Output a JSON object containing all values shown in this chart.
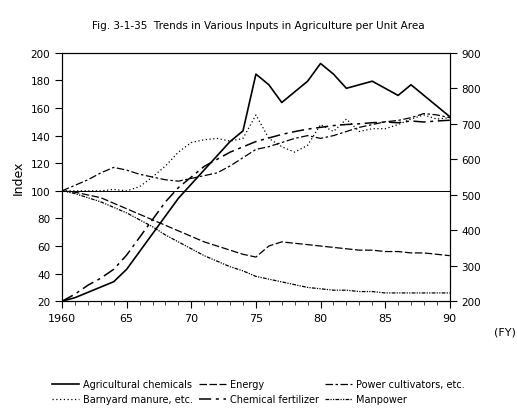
{
  "years": [
    1960,
    1961,
    1962,
    1963,
    1964,
    1965,
    1966,
    1967,
    1968,
    1969,
    1970,
    1971,
    1972,
    1973,
    1974,
    1975,
    1976,
    1977,
    1978,
    1979,
    1980,
    1981,
    1982,
    1983,
    1984,
    1985,
    1986,
    1987,
    1988,
    1989,
    1990
  ],
  "agricultural_chemicals": [
    200,
    210,
    225,
    240,
    255,
    290,
    340,
    390,
    440,
    490,
    530,
    570,
    610,
    650,
    680,
    840,
    810,
    760,
    790,
    820,
    870,
    840,
    800,
    810,
    820,
    800,
    780,
    810,
    780,
    750,
    720
  ],
  "chemical_fertilizer": [
    200,
    220,
    245,
    265,
    290,
    330,
    380,
    430,
    480,
    520,
    550,
    580,
    600,
    620,
    635,
    650,
    660,
    670,
    678,
    685,
    690,
    695,
    698,
    700,
    703,
    705,
    703,
    708,
    705,
    708,
    710
  ],
  "barnyard_manure": [
    100,
    100,
    100,
    100,
    101,
    100,
    103,
    110,
    118,
    128,
    135,
    137,
    138,
    136,
    138,
    155,
    138,
    132,
    128,
    133,
    148,
    143,
    152,
    143,
    145,
    145,
    148,
    152,
    155,
    152,
    153
  ],
  "power_cultivators": [
    100,
    104,
    108,
    113,
    117,
    115,
    112,
    110,
    108,
    107,
    109,
    111,
    113,
    118,
    124,
    130,
    132,
    135,
    138,
    140,
    138,
    140,
    143,
    146,
    148,
    150,
    151,
    153,
    156,
    155,
    153
  ],
  "energy": [
    100,
    99,
    97,
    95,
    91,
    87,
    83,
    79,
    75,
    71,
    67,
    63,
    60,
    57,
    54,
    52,
    60,
    63,
    62,
    61,
    60,
    59,
    58,
    57,
    57,
    56,
    56,
    55,
    55,
    54,
    53
  ],
  "manpower": [
    100,
    98,
    95,
    92,
    88,
    84,
    79,
    74,
    68,
    63,
    58,
    53,
    49,
    45,
    42,
    38,
    36,
    34,
    32,
    30,
    29,
    28,
    28,
    27,
    27,
    26,
    26,
    26,
    26,
    26,
    26
  ],
  "title": "Fig. 3-1-35  Trends in Various Inputs in Agriculture per Unit Area",
  "xlabel": "(FY)",
  "ylabel_left": "Index",
  "ylim_left": [
    20,
    200
  ],
  "ylim_right": [
    200,
    900
  ],
  "yticks_left": [
    20,
    40,
    60,
    80,
    100,
    120,
    140,
    160,
    180,
    200
  ],
  "yticks_right": [
    200,
    300,
    400,
    500,
    600,
    700,
    800,
    900
  ],
  "xticks": [
    1960,
    1965,
    1970,
    1975,
    1980,
    1985,
    1990
  ],
  "xticklabels": [
    "1960",
    "65",
    "70",
    "75",
    "80",
    "85",
    "90"
  ],
  "background_color": "#ffffff"
}
